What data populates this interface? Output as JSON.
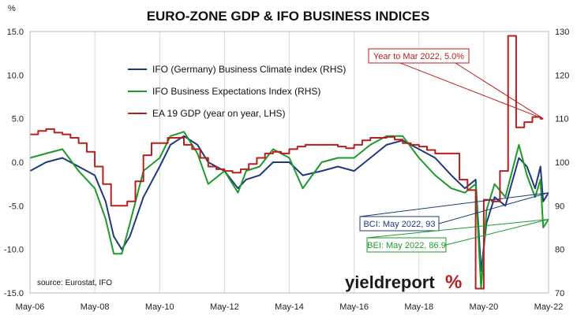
{
  "chart_data": {
    "type": "line",
    "title": "EURO-ZONE GDP & IFO BUSINESS INDICES",
    "left_axis": {
      "unit_label": "%",
      "ylim": [
        -15,
        15
      ],
      "ticks": [
        "15.0",
        "10.0",
        "5.0",
        "0.0",
        "-5.0",
        "-10.0",
        "-15.0"
      ]
    },
    "right_axis": {
      "ylim": [
        70,
        130
      ],
      "ticks": [
        "130",
        "120",
        "110",
        "100",
        "90",
        "80",
        "70"
      ]
    },
    "x_axis": {
      "range": [
        "2006-05",
        "2022-05"
      ],
      "ticks": [
        "May-06",
        "May-08",
        "May-10",
        "May-12",
        "May-14",
        "May-16",
        "May-18",
        "May-20",
        "May-22"
      ]
    },
    "grid": "vertical",
    "legend_position": "top-left",
    "series": [
      {
        "name": "IFO (Germany) Business Climate index (RHS)",
        "axis": "right",
        "color": "#1f3a7a",
        "points": [
          [
            "2006-05",
            98
          ],
          [
            "2006-11",
            100
          ],
          [
            "2007-05",
            101
          ],
          [
            "2007-11",
            99
          ],
          [
            "2008-05",
            97
          ],
          [
            "2008-09",
            91
          ],
          [
            "2008-12",
            83
          ],
          [
            "2009-03",
            80
          ],
          [
            "2009-06",
            83
          ],
          [
            "2009-11",
            92
          ],
          [
            "2010-05",
            99
          ],
          [
            "2010-09",
            104
          ],
          [
            "2011-02",
            106
          ],
          [
            "2011-07",
            104
          ],
          [
            "2011-11",
            100
          ],
          [
            "2012-05",
            98
          ],
          [
            "2012-10",
            94
          ],
          [
            "2013-01",
            96
          ],
          [
            "2013-06",
            97
          ],
          [
            "2013-11",
            100
          ],
          [
            "2014-05",
            100
          ],
          [
            "2014-10",
            97
          ],
          [
            "2015-05",
            98
          ],
          [
            "2015-11",
            99
          ],
          [
            "2016-05",
            98
          ],
          [
            "2016-11",
            101
          ],
          [
            "2017-05",
            104
          ],
          [
            "2017-11",
            105
          ],
          [
            "2018-05",
            103
          ],
          [
            "2018-11",
            101
          ],
          [
            "2019-05",
            97
          ],
          [
            "2019-10",
            94
          ],
          [
            "2020-02",
            96
          ],
          [
            "2020-04",
            75
          ],
          [
            "2020-06",
            86
          ],
          [
            "2020-09",
            92
          ],
          [
            "2021-01",
            90
          ],
          [
            "2021-06",
            101
          ],
          [
            "2021-09",
            99
          ],
          [
            "2021-12",
            94
          ],
          [
            "2022-02",
            99
          ],
          [
            "2022-03",
            91
          ],
          [
            "2022-05",
            93
          ]
        ]
      },
      {
        "name": "IFO Business Expectations Index (RHS)",
        "axis": "right",
        "color": "#1e9a2a",
        "points": [
          [
            "2006-05",
            101
          ],
          [
            "2006-11",
            102
          ],
          [
            "2007-05",
            103
          ],
          [
            "2007-11",
            98
          ],
          [
            "2008-05",
            94
          ],
          [
            "2008-09",
            87
          ],
          [
            "2008-12",
            79
          ],
          [
            "2009-03",
            79
          ],
          [
            "2009-06",
            86
          ],
          [
            "2009-11",
            98
          ],
          [
            "2010-05",
            101
          ],
          [
            "2010-09",
            106
          ],
          [
            "2011-02",
            107
          ],
          [
            "2011-07",
            102
          ],
          [
            "2011-11",
            95
          ],
          [
            "2012-05",
            98
          ],
          [
            "2012-10",
            93
          ],
          [
            "2013-01",
            98
          ],
          [
            "2013-06",
            99
          ],
          [
            "2013-11",
            103
          ],
          [
            "2014-05",
            101
          ],
          [
            "2014-10",
            94
          ],
          [
            "2015-05",
            100
          ],
          [
            "2015-11",
            101
          ],
          [
            "2016-05",
            101
          ],
          [
            "2016-11",
            104
          ],
          [
            "2017-05",
            106
          ],
          [
            "2017-11",
            106
          ],
          [
            "2018-05",
            101
          ],
          [
            "2018-11",
            97
          ],
          [
            "2019-05",
            94
          ],
          [
            "2019-10",
            93
          ],
          [
            "2020-02",
            95
          ],
          [
            "2020-04",
            71
          ],
          [
            "2020-06",
            89
          ],
          [
            "2020-09",
            95
          ],
          [
            "2021-01",
            92
          ],
          [
            "2021-06",
            104
          ],
          [
            "2021-09",
            97
          ],
          [
            "2021-12",
            92
          ],
          [
            "2022-02",
            96
          ],
          [
            "2022-03",
            85
          ],
          [
            "2022-05",
            86.9
          ]
        ]
      },
      {
        "name": "EA 19 GDP (year on year, LHS)",
        "axis": "left",
        "color": "#b81f1f",
        "step": true,
        "points": [
          [
            "2006-05",
            3.2
          ],
          [
            "2006-08",
            3.6
          ],
          [
            "2006-11",
            3.8
          ],
          [
            "2007-02",
            3.4
          ],
          [
            "2007-05",
            3.2
          ],
          [
            "2007-08",
            2.8
          ],
          [
            "2007-11",
            2.2
          ],
          [
            "2008-02",
            1.2
          ],
          [
            "2008-05",
            -0.5
          ],
          [
            "2008-08",
            -2.5
          ],
          [
            "2008-11",
            -5.0
          ],
          [
            "2009-02",
            -5.0
          ],
          [
            "2009-05",
            -4.5
          ],
          [
            "2009-08",
            -2.2
          ],
          [
            "2009-11",
            0.8
          ],
          [
            "2010-02",
            2.2
          ],
          [
            "2010-05",
            2.2
          ],
          [
            "2010-08",
            2.8
          ],
          [
            "2010-11",
            2.8
          ],
          [
            "2011-02",
            2.0
          ],
          [
            "2011-05",
            1.5
          ],
          [
            "2011-08",
            0.5
          ],
          [
            "2011-11",
            -0.5
          ],
          [
            "2012-02",
            -0.8
          ],
          [
            "2012-05",
            -1.0
          ],
          [
            "2012-08",
            -1.2
          ],
          [
            "2012-11",
            -0.8
          ],
          [
            "2013-02",
            -0.2
          ],
          [
            "2013-05",
            0.5
          ],
          [
            "2013-08",
            1.0
          ],
          [
            "2013-11",
            1.2
          ],
          [
            "2014-02",
            1.0
          ],
          [
            "2014-05",
            1.5
          ],
          [
            "2014-08",
            1.8
          ],
          [
            "2014-11",
            2.0
          ],
          [
            "2015-02",
            2.0
          ],
          [
            "2015-05",
            2.0
          ],
          [
            "2015-08",
            2.0
          ],
          [
            "2015-11",
            1.8
          ],
          [
            "2016-02",
            1.6
          ],
          [
            "2016-05",
            2.0
          ],
          [
            "2016-08",
            2.5
          ],
          [
            "2016-11",
            2.8
          ],
          [
            "2017-02",
            2.8
          ],
          [
            "2017-05",
            2.9
          ],
          [
            "2017-08",
            2.6
          ],
          [
            "2017-11",
            2.2
          ],
          [
            "2018-02",
            2.0
          ],
          [
            "2018-05",
            1.8
          ],
          [
            "2018-08",
            1.4
          ],
          [
            "2018-11",
            1.0
          ],
          [
            "2019-02",
            1.0
          ],
          [
            "2019-05",
            1.0
          ],
          [
            "2019-08",
            -2.0
          ],
          [
            "2019-11",
            -3.2
          ],
          [
            "2020-02",
            -14.5
          ],
          [
            "2020-05",
            -4.3
          ],
          [
            "2020-08",
            -4.5
          ],
          [
            "2020-11",
            -1.0
          ],
          [
            "2021-02",
            14.5
          ],
          [
            "2021-05",
            4.0
          ],
          [
            "2021-08",
            4.6
          ],
          [
            "2021-11",
            5.2
          ],
          [
            "2022-02",
            5.0
          ],
          [
            "2022-03",
            5.0
          ]
        ]
      }
    ],
    "annotations": [
      {
        "text": "Year to Mar 2022, 5.0%",
        "color": "#b81f1f",
        "series": 2
      },
      {
        "text": "BCI: May 2022, 93",
        "color": "#1f3a7a",
        "series": 0
      },
      {
        "text": "BEI: May 2022, 86.9",
        "color": "#1e9a2a",
        "series": 1
      }
    ],
    "source": "source: Eurostat, IFO",
    "brand": "yieldreport",
    "brand_mark": "%"
  }
}
